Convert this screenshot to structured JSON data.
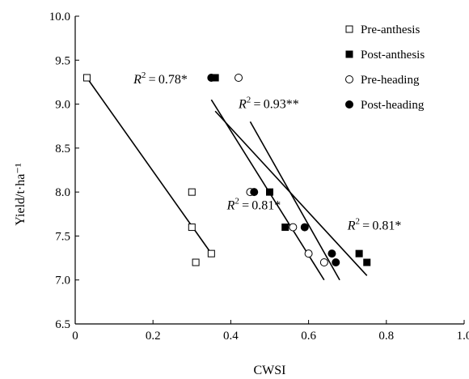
{
  "chart_data": {
    "type": "scatter",
    "xlabel": "CWSI",
    "ylabel": "Yield/t·ha⁻¹",
    "xlim": [
      0,
      1.0
    ],
    "ylim": [
      6.5,
      10.0
    ],
    "xticks": [
      {
        "v": 0,
        "label": "0"
      },
      {
        "v": 0.2,
        "label": "0.2"
      },
      {
        "v": 0.4,
        "label": "0.4"
      },
      {
        "v": 0.6,
        "label": "0.6"
      },
      {
        "v": 0.8,
        "label": "0.8"
      },
      {
        "v": 1.0,
        "label": "1.0"
      }
    ],
    "yticks": [
      {
        "v": 6.5,
        "label": "6.5"
      },
      {
        "v": 7.0,
        "label": "7.0"
      },
      {
        "v": 7.5,
        "label": "7.5"
      },
      {
        "v": 8.0,
        "label": "8.0"
      },
      {
        "v": 8.5,
        "label": "8.5"
      },
      {
        "v": 9.0,
        "label": "9.0"
      },
      {
        "v": 9.5,
        "label": "9.5"
      },
      {
        "v": 10.0,
        "label": "10.0"
      }
    ],
    "legend_position": "top-right",
    "series": [
      {
        "name": "Pre-anthesis",
        "marker": "open-square",
        "points": [
          [
            0.03,
            9.3
          ],
          [
            0.3,
            8.0
          ],
          [
            0.3,
            7.6
          ],
          [
            0.31,
            7.2
          ],
          [
            0.35,
            7.3
          ]
        ]
      },
      {
        "name": "Post-anthesis",
        "marker": "filled-square",
        "points": [
          [
            0.36,
            9.3
          ],
          [
            0.5,
            8.0
          ],
          [
            0.54,
            7.6
          ],
          [
            0.73,
            7.3
          ],
          [
            0.75,
            7.2
          ]
        ]
      },
      {
        "name": "Pre-heading",
        "marker": "open-circle",
        "points": [
          [
            0.42,
            9.3
          ],
          [
            0.45,
            8.0
          ],
          [
            0.56,
            7.6
          ],
          [
            0.6,
            7.3
          ],
          [
            0.64,
            7.2
          ]
        ]
      },
      {
        "name": "Post-heading",
        "marker": "filled-circle",
        "points": [
          [
            0.35,
            9.3
          ],
          [
            0.46,
            8.0
          ],
          [
            0.59,
            7.6
          ],
          [
            0.66,
            7.3
          ],
          [
            0.67,
            7.2
          ]
        ]
      }
    ],
    "trendlines": [
      {
        "from": [
          0.03,
          9.3
        ],
        "to": [
          0.35,
          7.3
        ]
      },
      {
        "from": [
          0.35,
          9.05
        ],
        "to": [
          0.64,
          7.0
        ]
      },
      {
        "from": [
          0.36,
          8.92
        ],
        "to": [
          0.75,
          7.05
        ]
      },
      {
        "from": [
          0.45,
          8.8
        ],
        "to": [
          0.68,
          7.0
        ]
      }
    ],
    "annotations": [
      {
        "text": "0.78*",
        "at": [
          0.15,
          9.28
        ]
      },
      {
        "text": "0.93**",
        "at": [
          0.42,
          9.0
        ]
      },
      {
        "text": "0.81*",
        "at": [
          0.39,
          7.85
        ]
      },
      {
        "text": "0.81*",
        "at": [
          0.7,
          7.62
        ]
      }
    ],
    "annotation_prefix": "R",
    "annotation_exponent": "2"
  }
}
